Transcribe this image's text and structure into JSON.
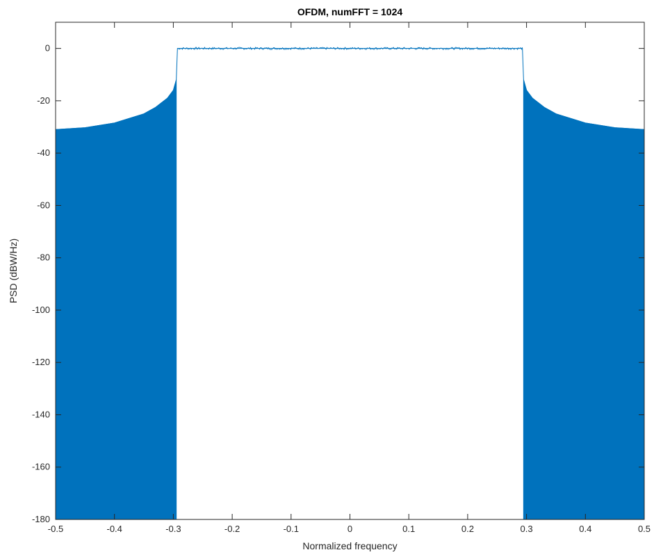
{
  "chart_data": {
    "type": "area",
    "title": "OFDM, numFFT = 1024",
    "xlabel": "Normalized frequency",
    "ylabel": "PSD (dBW/Hz)",
    "xlim": [
      -0.5,
      0.5
    ],
    "ylim": [
      -180,
      10
    ],
    "xticks": [
      -0.5,
      -0.4,
      -0.3,
      -0.2,
      -0.1,
      0,
      0.1,
      0.2,
      0.3,
      0.4,
      0.5
    ],
    "xtick_labels": [
      "-0.5",
      "-0.4",
      "-0.3",
      "-0.2",
      "-0.1",
      "0",
      "0.1",
      "0.2",
      "0.3",
      "0.4",
      "0.5"
    ],
    "yticks": [
      0,
      -20,
      -40,
      -60,
      -80,
      -100,
      -120,
      -140,
      -160,
      -180
    ],
    "ytick_labels": [
      "0",
      "-20",
      "-40",
      "-60",
      "-80",
      "-100",
      "-120",
      "-140",
      "-160",
      "-180"
    ],
    "grid": false,
    "series_color": "#0072BD",
    "series": [
      {
        "x": [
          -0.5,
          -0.45,
          -0.4,
          -0.35,
          -0.33,
          -0.31,
          -0.3,
          -0.295,
          -0.293,
          -0.2,
          -0.1,
          0,
          0.1,
          0.2,
          0.293,
          0.295,
          0.3,
          0.31,
          0.33,
          0.35,
          0.4,
          0.45,
          0.5
        ],
        "y": [
          -31,
          -30.3,
          -28.5,
          -25,
          -22.5,
          -19,
          -16,
          -12,
          0,
          0,
          0,
          0,
          0,
          0,
          0,
          -12,
          -16,
          -19,
          -22.5,
          -25,
          -28.5,
          -30.3,
          -31
        ],
        "lower_envelope": -180,
        "lower_envelope_x_ranges": [
          [
            -0.5,
            -0.293
          ],
          [
            0.293,
            0.5
          ]
        ]
      }
    ]
  }
}
